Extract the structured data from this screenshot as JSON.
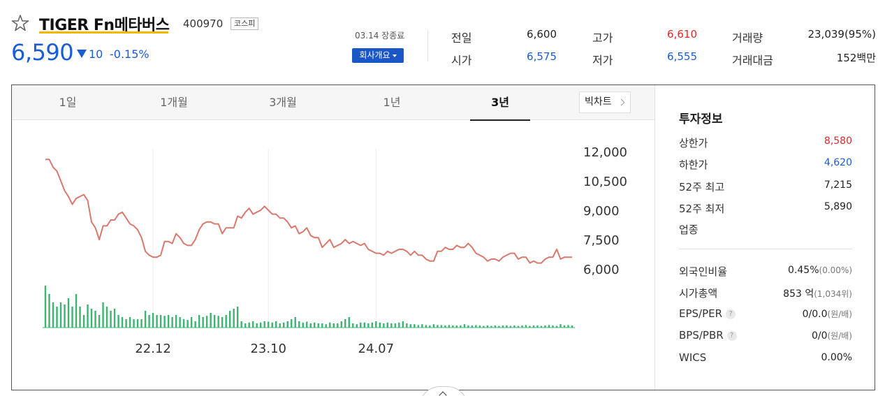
{
  "header": {
    "name": "TIGER Fn메타버스",
    "code": "400970",
    "market": "코스피",
    "price": "6,590",
    "change": "10",
    "change_pct": "-0.15%",
    "date_status": "03.14 장종료",
    "company_button": "회사개요"
  },
  "stats": {
    "prev_close_label": "전일",
    "prev_close": "6,600",
    "open_label": "시가",
    "open": "6,575",
    "high_label": "고가",
    "high": "6,610",
    "low_label": "저가",
    "low": "6,555",
    "volume_label": "거래량",
    "volume": "23,039(95%)",
    "amount_label": "거래대금",
    "amount": "152백만"
  },
  "tabs": [
    "1일",
    "1개월",
    "3개월",
    "1년",
    "3년"
  ],
  "active_tab": "3년",
  "bigchart_label": "빅차트",
  "side": {
    "title": "투자정보",
    "rows1": [
      {
        "label": "상한가",
        "value": "8,580",
        "color": "#e0272a"
      },
      {
        "label": "하한가",
        "value": "4,620",
        "color": "#1a5bd6"
      },
      {
        "label": "52주 최고",
        "value": "7,215",
        "color": "#222222"
      },
      {
        "label": "52주 최저",
        "value": "5,890",
        "color": "#222222"
      },
      {
        "label": "업종",
        "value": "",
        "color": "#222222"
      }
    ],
    "rows2": [
      {
        "label": "외국인비율",
        "value": "0.45%",
        "paren": "(0.00%)"
      },
      {
        "label": "시가총액",
        "value": "853 억",
        "paren": "(1,034위)"
      },
      {
        "label": "EPS/PER",
        "value": "0/0.0",
        "paren": "(원/배)"
      },
      {
        "label": "BPS/PBR",
        "value": "0/0",
        "paren": "(원/배)"
      },
      {
        "label": "WICS",
        "value": "0.00%",
        "paren": ""
      }
    ]
  },
  "colors": {
    "up": "#e0272a",
    "down": "#1a5bd6",
    "line": "#d9796e",
    "volume": "#3cb371"
  },
  "chart_data": {
    "type": "line",
    "y_ticks": [
      "12,000",
      "10,500",
      "9,000",
      "7,500",
      "6,000"
    ],
    "ylim": [
      6000,
      12000
    ],
    "x_ticks": [
      "22.12",
      "23.10",
      "24.07"
    ],
    "x_tick_index": [
      28,
      58,
      86
    ],
    "price": [
      11600,
      11600,
      11200,
      11000,
      10500,
      10000,
      9700,
      9300,
      9600,
      9700,
      9800,
      9500,
      8400,
      8100,
      7500,
      8200,
      8200,
      8500,
      8500,
      8800,
      8900,
      8600,
      8300,
      8200,
      8000,
      7600,
      6900,
      6700,
      6600,
      6600,
      6700,
      7400,
      7400,
      7300,
      7800,
      7600,
      7300,
      7200,
      7200,
      7500,
      8000,
      8300,
      8400,
      8400,
      8300,
      8300,
      7800,
      8100,
      8100,
      8100,
      8700,
      8600,
      8900,
      9100,
      8800,
      8900,
      9000,
      9200,
      9000,
      8800,
      8800,
      8600,
      8600,
      8400,
      8100,
      8200,
      7800,
      7900,
      8100,
      7700,
      7600,
      7600,
      7100,
      7300,
      7500,
      7100,
      7200,
      7300,
      7500,
      7300,
      7400,
      7300,
      7200,
      7300,
      7000,
      6900,
      6800,
      6800,
      6700,
      6900,
      6800,
      6900,
      7000,
      7000,
      6900,
      6700,
      6900,
      6700,
      6700,
      6500,
      6400,
      6400,
      6900,
      6900,
      7100,
      7000,
      7000,
      7200,
      7100,
      7100,
      7300,
      7100,
      6800,
      6700,
      6600,
      6400,
      6500,
      6500,
      6400,
      6600,
      6700,
      6800,
      6800,
      6500,
      6600,
      6600,
      6300,
      6400,
      6300,
      6300,
      6500,
      6600,
      6600,
      7000,
      6500,
      6600,
      6600,
      6600
    ],
    "volume": [
      100,
      80,
      60,
      50,
      60,
      55,
      70,
      50,
      80,
      50,
      30,
      55,
      45,
      40,
      30,
      60,
      50,
      40,
      45,
      30,
      25,
      20,
      25,
      20,
      20,
      20,
      40,
      30,
      35,
      30,
      30,
      28,
      30,
      25,
      30,
      25,
      20,
      18,
      25,
      15,
      30,
      25,
      28,
      35,
      30,
      28,
      25,
      30,
      40,
      45,
      50,
      15,
      10,
      12,
      15,
      10,
      12,
      15,
      14,
      12,
      15,
      10,
      12,
      15,
      20,
      25,
      15,
      12,
      14,
      10,
      12,
      10,
      10,
      8,
      12,
      10,
      10,
      15,
      20,
      25,
      10,
      8,
      12,
      12,
      10,
      12,
      15,
      12,
      10,
      12,
      10,
      10,
      12,
      15,
      10,
      8,
      8,
      6,
      8,
      6,
      5,
      8,
      6,
      6,
      5,
      6,
      5,
      5,
      5,
      8,
      5,
      5,
      6,
      5,
      4,
      5,
      4,
      5,
      4,
      5,
      5,
      4,
      5,
      4,
      5,
      6,
      4,
      5,
      5,
      4,
      5,
      6,
      5,
      4,
      8,
      5,
      6,
      5
    ]
  }
}
